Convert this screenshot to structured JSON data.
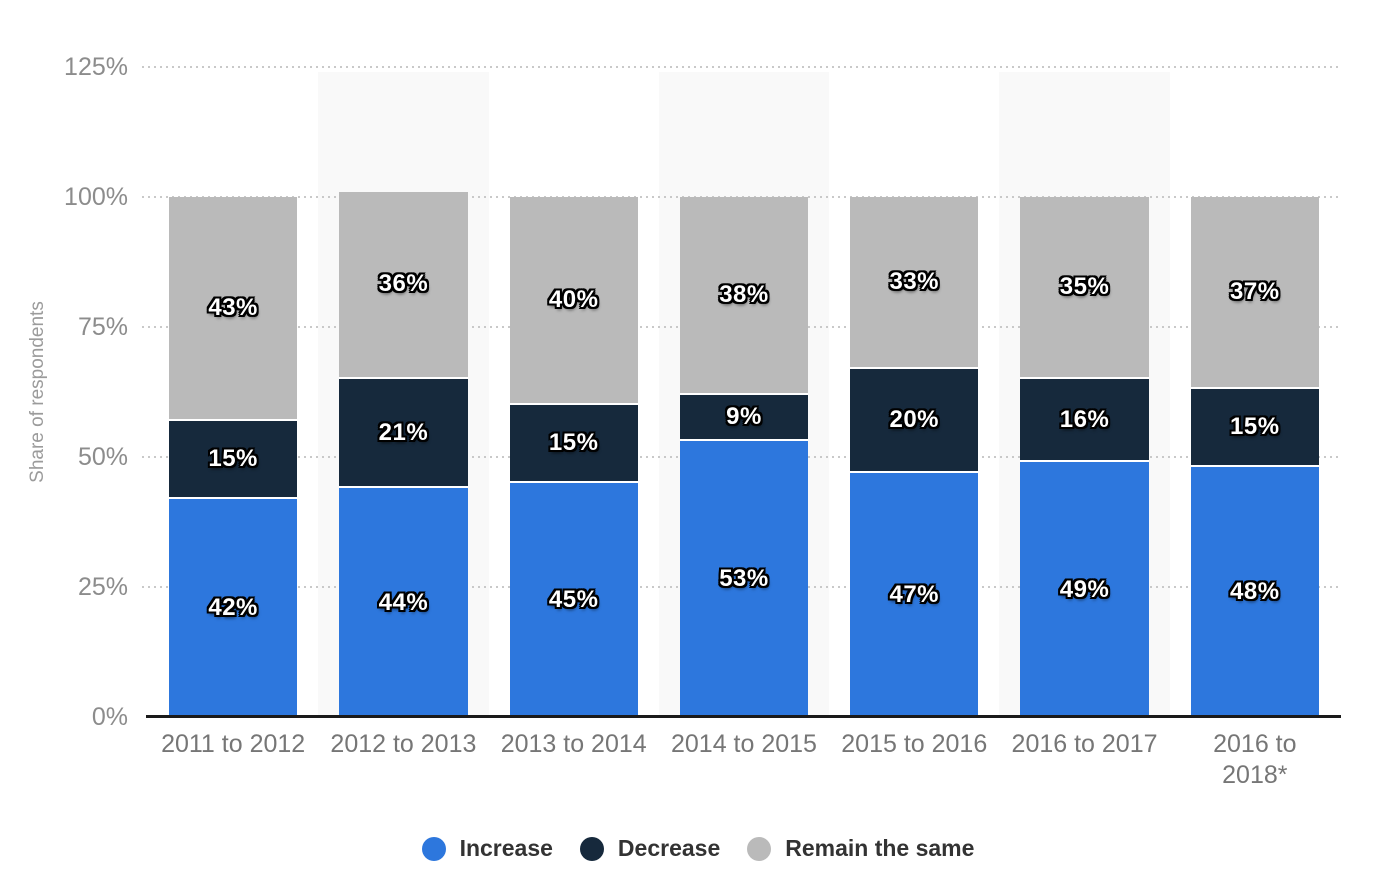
{
  "chart_data": {
    "type": "bar",
    "stacked": true,
    "categories": [
      "2011 to 2012",
      "2012 to 2013",
      "2013 to 2014",
      "2014 to 2015",
      "2015 to 2016",
      "2016 to 2017",
      "2016 to 2018*"
    ],
    "series": [
      {
        "name": "Increase",
        "color": "#2d77dd",
        "values": [
          42,
          44,
          45,
          53,
          47,
          49,
          48
        ]
      },
      {
        "name": "Decrease",
        "color": "#16293c",
        "values": [
          15,
          21,
          15,
          9,
          20,
          16,
          15
        ]
      },
      {
        "name": "Remain the same",
        "color": "#bababa",
        "values": [
          43,
          36,
          40,
          38,
          33,
          35,
          37
        ]
      }
    ],
    "xlabel": "",
    "ylabel": "Share of respondents",
    "ylim": [
      0,
      125
    ],
    "y_ticks": [
      {
        "value": 0,
        "label": "0%"
      },
      {
        "value": 25,
        "label": "25%"
      },
      {
        "value": 50,
        "label": "50%"
      },
      {
        "value": 75,
        "label": "75%"
      },
      {
        "value": 100,
        "label": "100%"
      },
      {
        "value": 125,
        "label": "125%"
      }
    ],
    "value_suffix": "%",
    "grid": "horizontal-dotted",
    "legend_position": "bottom"
  },
  "colors": {
    "column_stripe": "#f9f9f9",
    "gridline": "#c9c9c9",
    "axis_line": "#1a1a1a",
    "tick_label": "#8c8c8c",
    "category_label": "#767676",
    "legend_text": "#333333",
    "bar_label_text": "#ffffff",
    "bar_label_outline": "#000000"
  }
}
